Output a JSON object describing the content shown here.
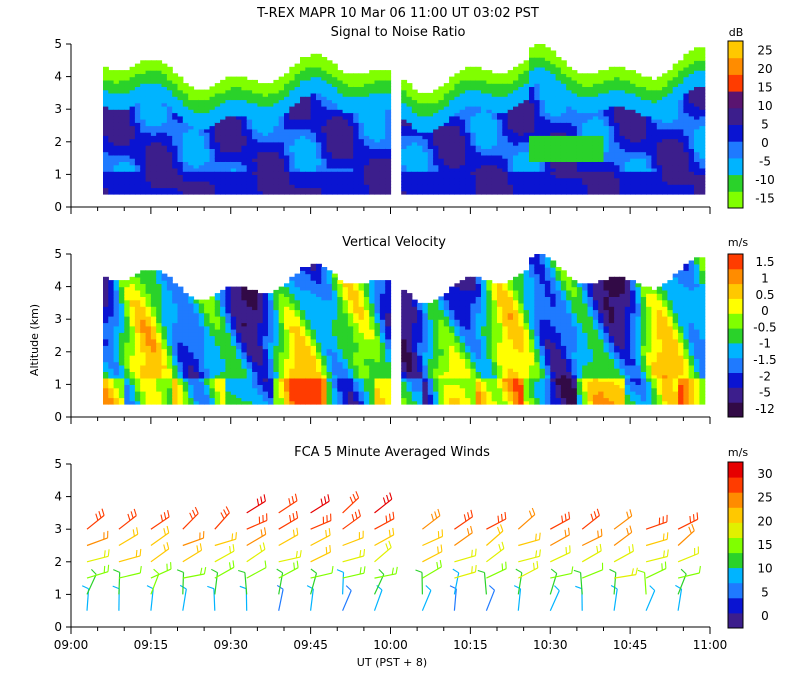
{
  "header": {
    "title": "T-REX   MAPR 10 Mar 06   11:00 UT   03:02   PST"
  },
  "chart_data": [
    {
      "type": "heatmap",
      "title": "Signal to Noise Ratio",
      "xlabel": "",
      "ylabel": "",
      "xlim": [
        540,
        660
      ],
      "ylim": [
        0,
        5
      ],
      "yticks": [
        "0",
        "1",
        "2",
        "3",
        "4",
        "5"
      ],
      "units": "dB",
      "levels": [
        "-15",
        "-10",
        "-5",
        "0",
        "5",
        "10",
        "15",
        "20",
        "25"
      ],
      "level_values": [
        -15,
        -10,
        -5,
        0,
        5,
        10,
        15,
        20,
        25
      ],
      "colors": [
        "#80ff00",
        "#2ad22a",
        "#00b4ff",
        "#1f7aff",
        "#0a14d2",
        "#3c1e8c",
        "#5a1470",
        "#ff3c00",
        "#ff8c00",
        "#ffc800"
      ],
      "data_gaps": [
        [
          0,
          6
        ],
        [
          59.5,
          61.5
        ],
        [
          118,
          120
        ]
      ],
      "top_ragged_km": 4.2
    },
    {
      "type": "heatmap",
      "title": "Vertical Velocity",
      "xlabel": "",
      "ylabel": "Altitude (km)",
      "xlim": [
        540,
        660
      ],
      "ylim": [
        0,
        5
      ],
      "yticks": [
        "0",
        "1",
        "2",
        "3",
        "4",
        "5"
      ],
      "units": "m/s",
      "levels": [
        "-12",
        "-5",
        "-2",
        "-1.5",
        "-1",
        "-0.5",
        "0",
        "0.5",
        "1",
        "1.5"
      ],
      "level_values": [
        -12,
        -5,
        -2,
        -1.5,
        -1,
        -0.5,
        0,
        0.5,
        1,
        1.5
      ],
      "colors": [
        "#320a46",
        "#3c1e8c",
        "#0a14d2",
        "#1f7aff",
        "#00b4ff",
        "#2ad22a",
        "#80ff00",
        "#ffff00",
        "#ffc800",
        "#ff8c00",
        "#ff3c00"
      ]
    },
    {
      "type": "scatter",
      "title": "FCA 5 Minute Averaged Winds",
      "xlabel": "UT  (PST + 8)",
      "ylabel": "",
      "xlim": [
        540,
        660
      ],
      "ylim": [
        0,
        5
      ],
      "yticks": [
        "0",
        "1",
        "2",
        "3",
        "4",
        "5"
      ],
      "xticks": [
        "09:00",
        "09:15",
        "09:30",
        "09:45",
        "10:00",
        "10:15",
        "10:30",
        "10:45",
        "11:00"
      ],
      "units": "m/s",
      "levels": [
        "0",
        "5",
        "10",
        "15",
        "20",
        "25",
        "30"
      ],
      "level_values": [
        0,
        5,
        10,
        15,
        20,
        25,
        30
      ],
      "colors": [
        "#3c1e8c",
        "#0a14d2",
        "#1f7aff",
        "#00b4ff",
        "#2ad22a",
        "#80ff00",
        "#e1f000",
        "#ffc800",
        "#ff8c00",
        "#ff3c00",
        "#e60000"
      ],
      "barb_times_min": [
        3,
        9,
        15,
        21,
        27,
        33,
        39,
        45,
        51,
        57,
        66,
        72,
        78,
        84,
        90,
        96,
        102,
        108,
        114
      ],
      "barb_altitudes_km": [
        0.5,
        1.0,
        1.5,
        2.0,
        2.5,
        3.0,
        3.5
      ]
    }
  ]
}
